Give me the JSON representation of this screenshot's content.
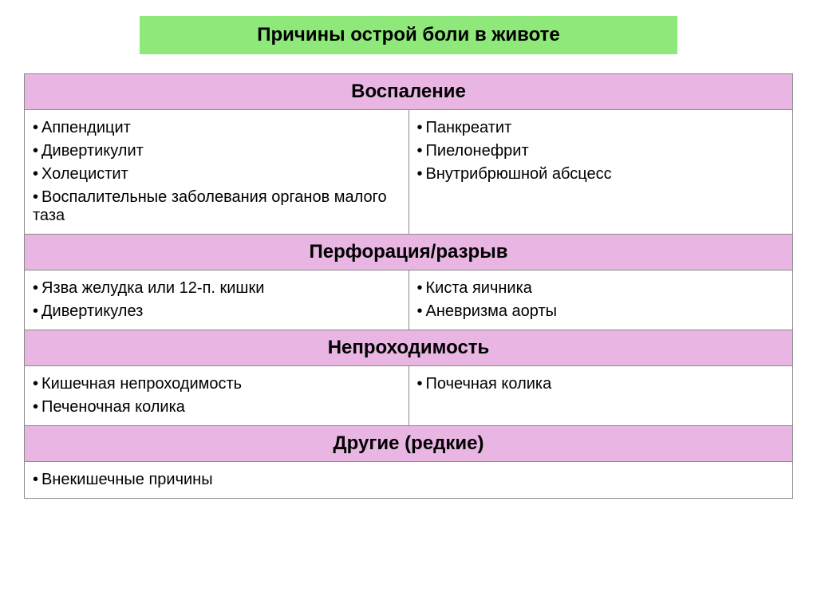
{
  "title": "Причины острой боли в животе",
  "title_bg": "#8ee97a",
  "title_fontsize": "24px",
  "header_bg": "#e9b5e3",
  "header_fontsize": "24px",
  "body_fontsize": "20px",
  "text_color": "#000000",
  "border_color": "#8a8a8a",
  "sections": [
    {
      "header": "Воспаление",
      "left": [
        "Аппендицит",
        "Дивертикулит",
        "Холецистит",
        "Воспалительные заболевания органов малого таза"
      ],
      "right": [
        "Панкреатит",
        "Пиелонефрит",
        "Внутрибрюшной абсцесс"
      ]
    },
    {
      "header": "Перфорация/разрыв",
      "left": [
        "Язва желудка или 12-п. кишки",
        "Дивертикулез"
      ],
      "right": [
        "Киста яичника",
        "Аневризма аорты"
      ]
    },
    {
      "header": "Непроходимость",
      "left": [
        "Кишечная непроходимость",
        "Печеночная колика"
      ],
      "right": [
        "Почечная колика"
      ]
    },
    {
      "header": "Другие (редкие)",
      "full": [
        "Внекишечные причины"
      ]
    }
  ]
}
